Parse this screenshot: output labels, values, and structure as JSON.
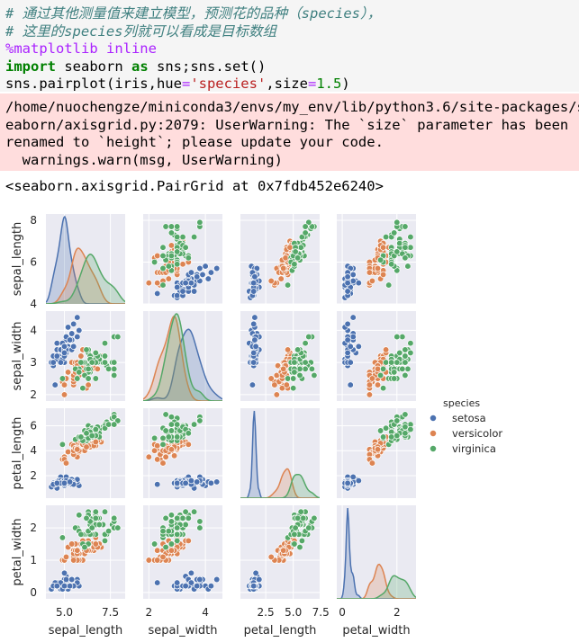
{
  "code": {
    "comment1": "# 通过其他测量值来建立模型，预测花的品种（species），",
    "comment2": "# 这里的species列就可以看成是目标数组",
    "magic": "%matplotlib inline",
    "import_kw": "import",
    "import_mod": " seaborn ",
    "as_kw": "as",
    "import_rest": " sns;sns.set()",
    "call_pre": "sns.pairplot(iris,hue",
    "eq1": "=",
    "hue_val": "'species'",
    "size_mid": ",size",
    "eq2": "=",
    "size_val": "1.5",
    "call_end": ")"
  },
  "stderr": {
    "line1": "/home/nuochengze/miniconda3/envs/my_env/lib/python3.6/site-packages/s",
    "line2": "eaborn/axisgrid.py:2079: UserWarning: The `size` parameter has been",
    "line3": "renamed to `height`; please update your code.",
    "line4": "  warnings.warn(msg, UserWarning)"
  },
  "output_repr": "<seaborn.axisgrid.PairGrid at 0x7fdb452e6240>",
  "chart_data": {
    "type": "scatter",
    "variables": [
      "sepal_length",
      "sepal_width",
      "petal_length",
      "petal_width"
    ],
    "xlabels": [
      "sepal_length",
      "sepal_width",
      "petal_length",
      "petal_width"
    ],
    "ylabels": [
      "sepal_length",
      "sepal_width",
      "petal_length",
      "petal_width"
    ],
    "ranges": [
      [
        4.0,
        8.3
      ],
      [
        1.8,
        4.6
      ],
      [
        0.2,
        7.4
      ],
      [
        -0.2,
        2.7
      ]
    ],
    "xticks": [
      [
        5.0,
        7.5
      ],
      [
        2,
        4
      ],
      [
        2.5,
        5.0,
        7.5
      ],
      [
        0,
        2
      ]
    ],
    "xtick_labels": [
      [
        "5.0",
        "7.5"
      ],
      [
        "2",
        "4"
      ],
      [
        "2.5",
        "5.0",
        "7.5"
      ],
      [
        "0",
        "2"
      ]
    ],
    "yticks": [
      [
        4,
        6,
        8
      ],
      [
        2,
        3,
        4
      ],
      [
        2,
        4,
        6
      ],
      [
        0,
        1,
        2
      ]
    ],
    "ytick_labels": [
      [
        "4",
        "6",
        "8"
      ],
      [
        "2",
        "3",
        "4"
      ],
      [
        "2",
        "4",
        "6"
      ],
      [
        "0",
        "1",
        "2"
      ]
    ],
    "legend": {
      "title": "species",
      "placement": "right"
    },
    "grid": true,
    "diagonal": "kde",
    "series": [
      {
        "name": "setosa",
        "color": "#4c72b0",
        "points": [
          [
            5.1,
            3.5,
            1.4,
            0.2
          ],
          [
            4.9,
            3.0,
            1.4,
            0.2
          ],
          [
            4.7,
            3.2,
            1.3,
            0.2
          ],
          [
            4.6,
            3.1,
            1.5,
            0.2
          ],
          [
            5.0,
            3.6,
            1.4,
            0.2
          ],
          [
            5.4,
            3.9,
            1.7,
            0.4
          ],
          [
            4.6,
            3.4,
            1.4,
            0.3
          ],
          [
            5.0,
            3.4,
            1.5,
            0.2
          ],
          [
            4.4,
            2.9,
            1.4,
            0.2
          ],
          [
            4.9,
            3.1,
            1.5,
            0.1
          ],
          [
            5.4,
            3.7,
            1.5,
            0.2
          ],
          [
            4.8,
            3.4,
            1.6,
            0.2
          ],
          [
            4.8,
            3.0,
            1.4,
            0.1
          ],
          [
            4.3,
            3.0,
            1.1,
            0.1
          ],
          [
            5.8,
            4.0,
            1.2,
            0.2
          ],
          [
            5.7,
            4.4,
            1.5,
            0.4
          ],
          [
            5.4,
            3.9,
            1.3,
            0.4
          ],
          [
            5.1,
            3.5,
            1.4,
            0.3
          ],
          [
            5.7,
            3.8,
            1.7,
            0.3
          ],
          [
            5.1,
            3.8,
            1.5,
            0.3
          ],
          [
            5.4,
            3.4,
            1.7,
            0.2
          ],
          [
            5.1,
            3.7,
            1.5,
            0.4
          ],
          [
            4.6,
            3.6,
            1.0,
            0.2
          ],
          [
            5.1,
            3.3,
            1.7,
            0.5
          ],
          [
            4.8,
            3.4,
            1.9,
            0.2
          ],
          [
            5.0,
            3.0,
            1.6,
            0.2
          ],
          [
            5.0,
            3.4,
            1.6,
            0.4
          ],
          [
            5.2,
            3.5,
            1.5,
            0.2
          ],
          [
            5.2,
            3.4,
            1.4,
            0.2
          ],
          [
            4.7,
            3.2,
            1.6,
            0.2
          ],
          [
            4.8,
            3.1,
            1.6,
            0.2
          ],
          [
            5.4,
            3.4,
            1.5,
            0.4
          ],
          [
            5.2,
            4.1,
            1.5,
            0.1
          ],
          [
            5.5,
            4.2,
            1.4,
            0.2
          ],
          [
            4.9,
            3.1,
            1.5,
            0.2
          ],
          [
            5.0,
            3.2,
            1.2,
            0.2
          ],
          [
            5.5,
            3.5,
            1.3,
            0.2
          ],
          [
            4.9,
            3.6,
            1.4,
            0.1
          ],
          [
            4.4,
            3.0,
            1.3,
            0.2
          ],
          [
            5.1,
            3.4,
            1.5,
            0.2
          ],
          [
            5.0,
            3.5,
            1.3,
            0.3
          ],
          [
            4.5,
            2.3,
            1.3,
            0.3
          ],
          [
            4.4,
            3.2,
            1.3,
            0.2
          ],
          [
            5.0,
            3.5,
            1.6,
            0.6
          ],
          [
            5.1,
            3.8,
            1.9,
            0.4
          ],
          [
            4.8,
            3.0,
            1.4,
            0.3
          ],
          [
            5.1,
            3.8,
            1.6,
            0.2
          ],
          [
            4.6,
            3.2,
            1.4,
            0.2
          ],
          [
            5.3,
            3.7,
            1.5,
            0.2
          ],
          [
            5.0,
            3.3,
            1.4,
            0.2
          ]
        ]
      },
      {
        "name": "versicolor",
        "color": "#dd8452",
        "points": [
          [
            7.0,
            3.2,
            4.7,
            1.4
          ],
          [
            6.4,
            3.2,
            4.5,
            1.5
          ],
          [
            6.9,
            3.1,
            4.9,
            1.5
          ],
          [
            5.5,
            2.3,
            4.0,
            1.3
          ],
          [
            6.5,
            2.8,
            4.6,
            1.5
          ],
          [
            5.7,
            2.8,
            4.5,
            1.3
          ],
          [
            6.3,
            3.3,
            4.7,
            1.6
          ],
          [
            4.9,
            2.4,
            3.3,
            1.0
          ],
          [
            6.6,
            2.9,
            4.6,
            1.3
          ],
          [
            5.2,
            2.7,
            3.9,
            1.4
          ],
          [
            5.0,
            2.0,
            3.5,
            1.0
          ],
          [
            5.9,
            3.0,
            4.2,
            1.5
          ],
          [
            6.0,
            2.2,
            4.0,
            1.0
          ],
          [
            6.1,
            2.9,
            4.7,
            1.4
          ],
          [
            5.6,
            2.9,
            3.6,
            1.3
          ],
          [
            6.7,
            3.1,
            4.4,
            1.4
          ],
          [
            5.6,
            3.0,
            4.5,
            1.5
          ],
          [
            5.8,
            2.7,
            4.1,
            1.0
          ],
          [
            6.2,
            2.2,
            4.5,
            1.5
          ],
          [
            5.6,
            2.5,
            3.9,
            1.1
          ],
          [
            5.9,
            3.2,
            4.8,
            1.8
          ],
          [
            6.1,
            2.8,
            4.0,
            1.3
          ],
          [
            6.3,
            2.5,
            4.9,
            1.5
          ],
          [
            6.1,
            2.8,
            4.7,
            1.2
          ],
          [
            6.4,
            2.9,
            4.3,
            1.3
          ],
          [
            6.6,
            3.0,
            4.4,
            1.4
          ],
          [
            6.8,
            2.8,
            4.8,
            1.4
          ],
          [
            6.7,
            3.0,
            5.0,
            1.7
          ],
          [
            6.0,
            2.9,
            4.5,
            1.5
          ],
          [
            5.7,
            2.6,
            3.5,
            1.0
          ],
          [
            5.5,
            2.4,
            3.8,
            1.1
          ],
          [
            5.5,
            2.4,
            3.7,
            1.0
          ],
          [
            5.8,
            2.7,
            3.9,
            1.2
          ],
          [
            6.0,
            2.7,
            5.1,
            1.6
          ],
          [
            5.4,
            3.0,
            4.5,
            1.5
          ],
          [
            6.0,
            3.4,
            4.5,
            1.6
          ],
          [
            6.7,
            3.1,
            4.7,
            1.5
          ],
          [
            6.3,
            2.3,
            4.4,
            1.3
          ],
          [
            5.6,
            3.0,
            4.1,
            1.3
          ],
          [
            5.5,
            2.5,
            4.0,
            1.3
          ],
          [
            5.5,
            2.6,
            4.4,
            1.2
          ],
          [
            6.1,
            3.0,
            4.6,
            1.4
          ],
          [
            5.8,
            2.6,
            4.0,
            1.2
          ],
          [
            5.0,
            2.3,
            3.3,
            1.0
          ],
          [
            5.6,
            2.7,
            4.2,
            1.3
          ],
          [
            5.7,
            3.0,
            4.2,
            1.2
          ],
          [
            5.7,
            2.9,
            4.2,
            1.3
          ],
          [
            6.2,
            2.9,
            4.3,
            1.3
          ],
          [
            5.1,
            2.5,
            3.0,
            1.1
          ],
          [
            5.7,
            2.8,
            4.1,
            1.3
          ]
        ]
      },
      {
        "name": "virginica",
        "color": "#55a868",
        "points": [
          [
            6.3,
            3.3,
            6.0,
            2.5
          ],
          [
            5.8,
            2.7,
            5.1,
            1.9
          ],
          [
            7.1,
            3.0,
            5.9,
            2.1
          ],
          [
            6.3,
            2.9,
            5.6,
            1.8
          ],
          [
            6.5,
            3.0,
            5.8,
            2.2
          ],
          [
            7.6,
            3.0,
            6.6,
            2.1
          ],
          [
            4.9,
            2.5,
            4.5,
            1.7
          ],
          [
            7.3,
            2.9,
            6.3,
            1.8
          ],
          [
            6.7,
            2.5,
            5.8,
            1.8
          ],
          [
            7.2,
            3.6,
            6.1,
            2.5
          ],
          [
            6.5,
            3.2,
            5.1,
            2.0
          ],
          [
            6.4,
            2.7,
            5.3,
            1.9
          ],
          [
            6.8,
            3.0,
            5.5,
            2.1
          ],
          [
            5.7,
            2.5,
            5.0,
            2.0
          ],
          [
            5.8,
            2.8,
            5.1,
            2.4
          ],
          [
            6.4,
            3.2,
            5.3,
            2.3
          ],
          [
            6.5,
            3.0,
            5.5,
            1.8
          ],
          [
            7.7,
            3.8,
            6.7,
            2.2
          ],
          [
            7.7,
            2.6,
            6.9,
            2.3
          ],
          [
            6.0,
            2.2,
            5.0,
            1.5
          ],
          [
            6.9,
            3.2,
            5.7,
            2.3
          ],
          [
            5.6,
            2.8,
            4.9,
            2.0
          ],
          [
            7.7,
            2.8,
            6.7,
            2.0
          ],
          [
            6.3,
            2.7,
            4.9,
            1.8
          ],
          [
            6.7,
            3.3,
            5.7,
            2.1
          ],
          [
            7.2,
            3.2,
            6.0,
            1.8
          ],
          [
            6.2,
            2.8,
            4.8,
            1.8
          ],
          [
            6.1,
            3.0,
            4.9,
            1.8
          ],
          [
            6.4,
            2.8,
            5.6,
            2.1
          ],
          [
            7.2,
            3.0,
            5.8,
            1.6
          ],
          [
            7.4,
            2.8,
            6.1,
            1.9
          ],
          [
            7.9,
            3.8,
            6.4,
            2.0
          ],
          [
            6.4,
            2.8,
            5.6,
            2.2
          ],
          [
            6.3,
            2.8,
            5.1,
            1.5
          ],
          [
            6.1,
            2.6,
            5.6,
            1.4
          ],
          [
            7.7,
            3.0,
            6.1,
            2.3
          ],
          [
            6.3,
            3.4,
            5.6,
            2.4
          ],
          [
            6.4,
            3.1,
            5.5,
            1.8
          ],
          [
            6.0,
            3.0,
            4.8,
            1.8
          ],
          [
            6.9,
            3.1,
            5.4,
            2.1
          ],
          [
            6.7,
            3.1,
            5.6,
            2.4
          ],
          [
            6.9,
            3.1,
            5.1,
            2.3
          ],
          [
            5.8,
            2.7,
            5.1,
            1.9
          ],
          [
            6.8,
            3.2,
            5.9,
            2.3
          ],
          [
            6.7,
            3.3,
            5.7,
            2.5
          ],
          [
            6.7,
            3.0,
            5.2,
            2.3
          ],
          [
            6.3,
            2.5,
            5.0,
            1.9
          ],
          [
            6.5,
            3.0,
            5.2,
            2.0
          ],
          [
            6.2,
            3.4,
            5.4,
            2.3
          ],
          [
            5.9,
            3.0,
            5.1,
            1.8
          ]
        ]
      }
    ]
  }
}
